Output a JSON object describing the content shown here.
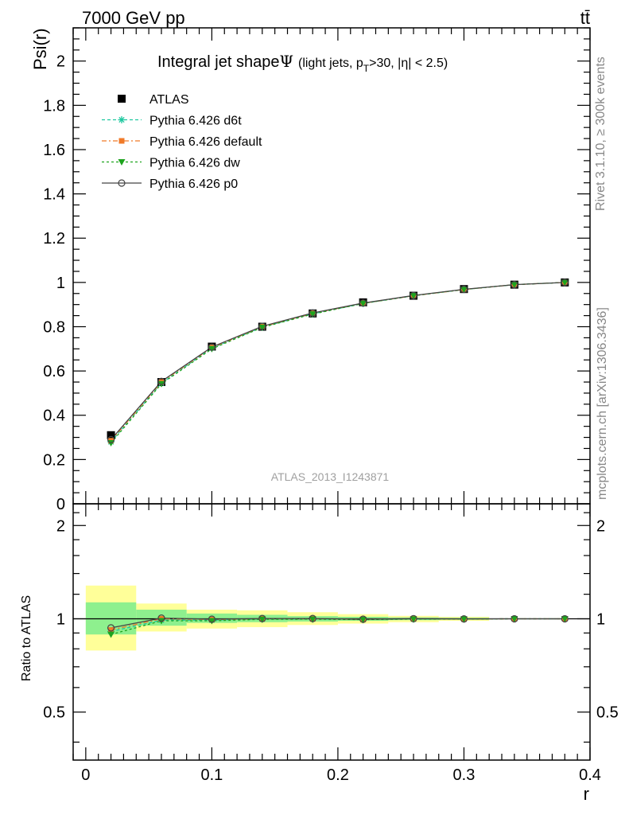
{
  "header": {
    "energy": "7000 GeV pp",
    "process": "tt̄",
    "side_rivet": "Rivet 3.1.10, ≥ 300k events",
    "side_mcplots": "mcplots.cern.ch [arXiv:1306.3436]",
    "watermark": "ATLAS_2013_I1243871"
  },
  "title": {
    "main": "Integral jet shape",
    "psi": "Ψ",
    "sub_pre": "(light jets, p",
    "sub_sub": "T",
    "sub_post": ">30, |η| < 2.5)"
  },
  "legend": [
    {
      "key": "atlas",
      "label": "ATLAS",
      "color": "#000000",
      "marker": "square"
    },
    {
      "key": "d6t",
      "label": "Pythia 6.426 d6t",
      "color": "#1fc8a0",
      "marker": "asterisk"
    },
    {
      "key": "default",
      "label": "Pythia 6.426 default",
      "color": "#f07a28",
      "marker": "square-small"
    },
    {
      "key": "dw",
      "label": "Pythia 6.426 dw",
      "color": "#1ea31e",
      "marker": "triangle-down"
    },
    {
      "key": "p0",
      "label": "Pythia 6.426 p0",
      "color": "#444444",
      "marker": "circle-open"
    }
  ],
  "chart_data": {
    "type": "line",
    "xlabel": "r",
    "ylabel": "Psi(r)",
    "ratio_ylabel": "Ratio to ATLAS",
    "xlim": [
      -0.01,
      0.4
    ],
    "ylim": [
      0,
      2.15
    ],
    "ratio_ylim": [
      0.35,
      2.35
    ],
    "x_ticks": [
      "0",
      "0.1",
      "0.2",
      "0.3",
      "0.4"
    ],
    "y_ticks": [
      "0",
      "0.2",
      "0.4",
      "0.6",
      "0.8",
      "1",
      "1.2",
      "1.4",
      "1.6",
      "1.8",
      "2"
    ],
    "ratio_ticks": [
      "0.5",
      "1",
      "2"
    ],
    "x": [
      0.02,
      0.06,
      0.1,
      0.14,
      0.18,
      0.22,
      0.26,
      0.3,
      0.34,
      0.38
    ],
    "series": [
      {
        "name": "ATLAS",
        "values": [
          0.31,
          0.55,
          0.71,
          0.8,
          0.86,
          0.91,
          0.94,
          0.97,
          0.99,
          1.0
        ]
      },
      {
        "name": "Pythia 6.426 d6t",
        "values": [
          0.28,
          0.545,
          0.703,
          0.798,
          0.858,
          0.905,
          0.94,
          0.968,
          0.99,
          1.0
        ]
      },
      {
        "name": "Pythia 6.426 default",
        "values": [
          0.285,
          0.55,
          0.706,
          0.8,
          0.86,
          0.906,
          0.94,
          0.968,
          0.99,
          1.0
        ]
      },
      {
        "name": "Pythia 6.426 dw",
        "values": [
          0.275,
          0.542,
          0.7,
          0.797,
          0.857,
          0.905,
          0.94,
          0.968,
          0.99,
          1.0
        ]
      },
      {
        "name": "Pythia 6.426 p0",
        "values": [
          0.29,
          0.553,
          0.708,
          0.802,
          0.862,
          0.907,
          0.941,
          0.969,
          0.99,
          1.0
        ]
      }
    ],
    "ratio_series": [
      {
        "name": "Pythia 6.426 d6t",
        "values": [
          0.91,
          0.99,
          0.99,
          0.997,
          0.998,
          0.995,
          0.998,
          0.998,
          1.0,
          1.0
        ]
      },
      {
        "name": "Pythia 6.426 default",
        "values": [
          0.92,
          1.0,
          0.995,
          1.0,
          1.0,
          0.996,
          1.0,
          0.998,
          1.0,
          1.0
        ]
      },
      {
        "name": "Pythia 6.426 dw",
        "values": [
          0.89,
          0.985,
          0.985,
          0.996,
          0.997,
          0.994,
          0.998,
          0.998,
          1.0,
          1.0
        ]
      },
      {
        "name": "Pythia 6.426 p0",
        "values": [
          0.935,
          1.005,
          0.997,
          1.002,
          1.002,
          0.997,
          1.001,
          0.999,
          1.0,
          1.0
        ]
      }
    ],
    "uncertainty_bands": [
      {
        "x_lo": 0.0,
        "x_hi": 0.04,
        "stat_lo": 0.89,
        "stat_hi": 1.13,
        "tot_lo": 0.79,
        "tot_hi": 1.28
      },
      {
        "x_lo": 0.04,
        "x_hi": 0.08,
        "stat_lo": 0.95,
        "stat_hi": 1.07,
        "tot_lo": 0.91,
        "tot_hi": 1.12
      },
      {
        "x_lo": 0.08,
        "x_hi": 0.12,
        "stat_lo": 0.97,
        "stat_hi": 1.04,
        "tot_lo": 0.93,
        "tot_hi": 1.07
      },
      {
        "x_lo": 0.12,
        "x_hi": 0.16,
        "stat_lo": 0.975,
        "stat_hi": 1.03,
        "tot_lo": 0.94,
        "tot_hi": 1.065
      },
      {
        "x_lo": 0.16,
        "x_hi": 0.2,
        "stat_lo": 0.98,
        "stat_hi": 1.02,
        "tot_lo": 0.955,
        "tot_hi": 1.05
      },
      {
        "x_lo": 0.2,
        "x_hi": 0.24,
        "stat_lo": 0.985,
        "stat_hi": 1.015,
        "tot_lo": 0.965,
        "tot_hi": 1.035
      },
      {
        "x_lo": 0.24,
        "x_hi": 0.28,
        "stat_lo": 0.99,
        "stat_hi": 1.01,
        "tot_lo": 0.975,
        "tot_hi": 1.022
      },
      {
        "x_lo": 0.28,
        "x_hi": 0.32,
        "stat_lo": 0.993,
        "stat_hi": 1.007,
        "tot_lo": 0.985,
        "tot_hi": 1.015
      }
    ]
  },
  "colors": {
    "stat_band": "#8ef08e",
    "total_band": "#ffff99",
    "atlas": "#000000",
    "watermark": "#a0a0a0",
    "side_text": "#888888"
  }
}
